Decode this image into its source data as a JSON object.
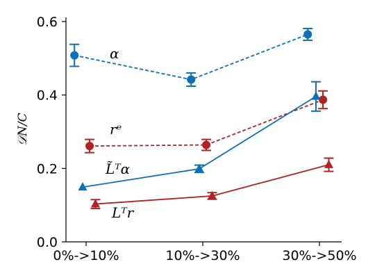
{
  "chart_data": {
    "type": "line",
    "categories": [
      "0%->10%",
      "10%->30%",
      "30%->50%"
    ],
    "ylabel": "𝒟N/C",
    "ylim": [
      0.0,
      0.6
    ],
    "yticks": [
      "0.0",
      "0.2",
      "0.4",
      "0.6"
    ],
    "grid": false,
    "legend": "none",
    "series": [
      {
        "name": "α",
        "color": "#0b6fba",
        "style": "dashed",
        "marker": "circle",
        "offset": -0.1,
        "values": [
          0.508,
          0.442,
          0.565
        ],
        "errors": [
          0.03,
          0.018,
          0.016
        ]
      },
      {
        "name": "rᵉ",
        "color": "#b22222",
        "style": "dashed",
        "marker": "circle",
        "offset": 0.03,
        "values": [
          0.261,
          0.264,
          0.387
        ],
        "errors": [
          0.018,
          0.015,
          0.024
        ]
      },
      {
        "name": "L̃ᵀα",
        "color": "#0b6fba",
        "style": "solid",
        "marker": "triangle",
        "offset": -0.03,
        "values": [
          0.149,
          0.199,
          0.396
        ],
        "errors": [
          0.0,
          0.01,
          0.04
        ]
      },
      {
        "name": "Lᵀr",
        "color": "#b22222",
        "style": "solid",
        "marker": "triangle",
        "offset": 0.08,
        "values": [
          0.103,
          0.125,
          0.21
        ],
        "errors": [
          0.012,
          0.009,
          0.018
        ]
      }
    ]
  }
}
